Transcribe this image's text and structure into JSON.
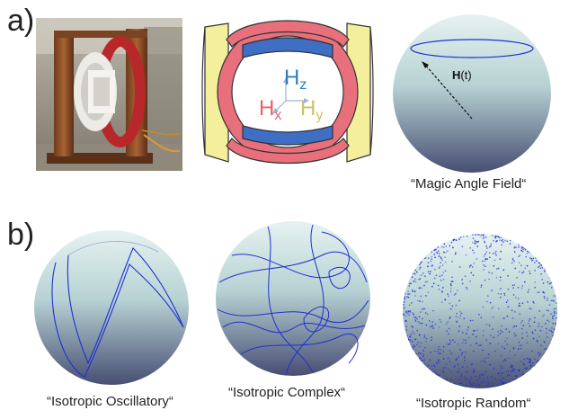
{
  "panel_a": {
    "label": "a)",
    "coil_labels": {
      "hz_main": "H",
      "hz_sub": "z",
      "hx_main": "H",
      "hx_sub": "x",
      "hy_main": "H",
      "hy_sub": "y"
    },
    "field_label_bold": "H",
    "field_label_rest": "(t)",
    "caption": "“Magic Angle Field“"
  },
  "panel_b": {
    "label": "b)",
    "captions": [
      "“Isotropic Oscillatory“",
      "“Isotropic Complex“",
      "“Isotropic Random“"
    ]
  },
  "colors": {
    "coil_red": "#e8707d",
    "coil_blue": "#3f6fc4",
    "coil_yellow": "#f3ef9a",
    "hz_text": "#2d7cc0",
    "hx_text": "#e8606e",
    "hy_text": "#c9c36a",
    "trajectory": "#1f2fd6",
    "sphere_top": "#e6f2f1",
    "sphere_bottom": "#474e73"
  }
}
